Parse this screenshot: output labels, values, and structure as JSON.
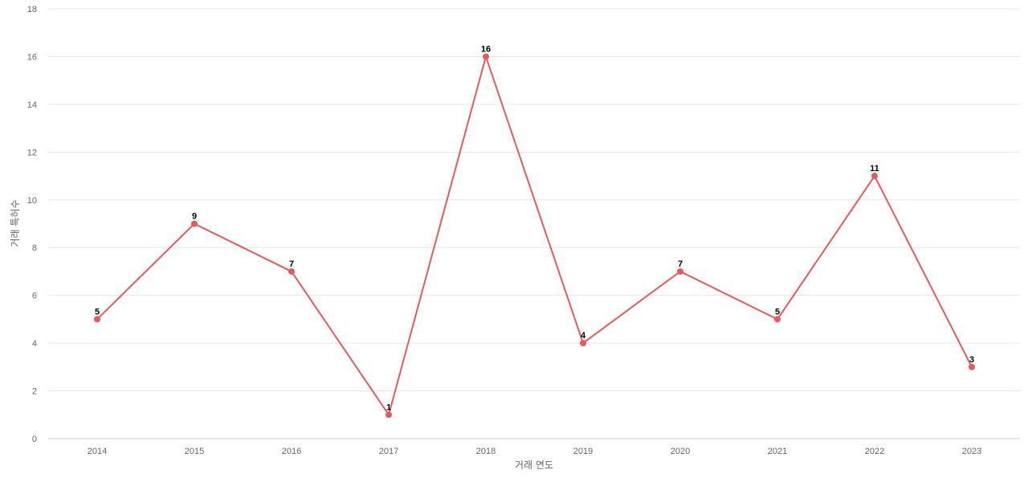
{
  "chart_data": {
    "type": "line",
    "title": "",
    "xlabel": "거래 연도",
    "ylabel": "거래 특허수",
    "categories": [
      "2014",
      "2015",
      "2016",
      "2017",
      "2018",
      "2019",
      "2020",
      "2021",
      "2022",
      "2023"
    ],
    "series": [
      {
        "name": "",
        "values": [
          5,
          9,
          7,
          1,
          16,
          4,
          7,
          5,
          11,
          3
        ],
        "color": "#e85a5a"
      }
    ],
    "ylim": [
      0,
      18
    ],
    "yticks": [
      0,
      2,
      4,
      6,
      8,
      10,
      12,
      14,
      16,
      18
    ],
    "grid": true,
    "data_labels": true,
    "legend": "none"
  }
}
